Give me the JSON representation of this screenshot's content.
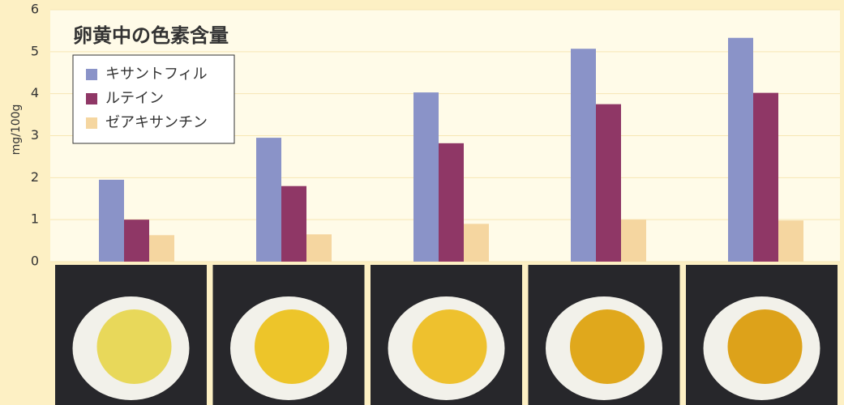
{
  "chart_data": {
    "type": "bar",
    "title": "卵黄中の色素含量",
    "y_label": "mg/100g",
    "categories": [
      null,
      null,
      null,
      null,
      null
    ],
    "series": [
      {
        "name": "キサントフィル",
        "color": "#8a93c8",
        "values": [
          1.95,
          2.95,
          4.03,
          5.07,
          5.33
        ]
      },
      {
        "name": "ルテイン",
        "color": "#8f3766",
        "values": [
          1.0,
          1.8,
          2.82,
          3.75,
          4.02
        ]
      },
      {
        "name": "ゼアキサンチン",
        "color": "#f5d6a0",
        "values": [
          0.63,
          0.65,
          0.9,
          1.0,
          0.98
        ]
      }
    ],
    "ylim": [
      0,
      6
    ],
    "yticks": [
      0,
      1,
      2,
      3,
      4,
      5,
      6
    ],
    "grid": true,
    "legend": "upper left"
  }
}
